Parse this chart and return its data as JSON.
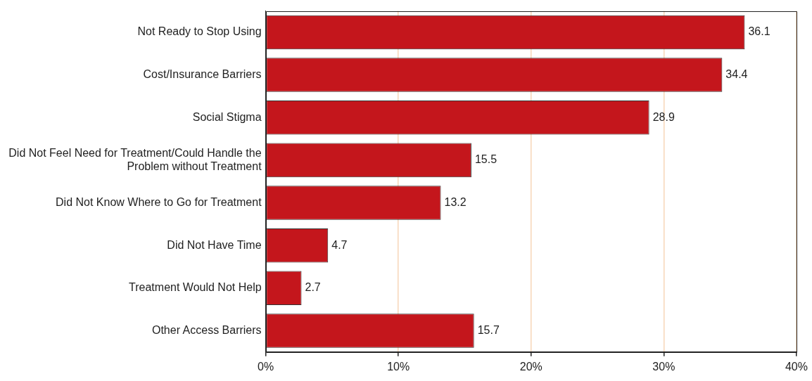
{
  "chart_data": {
    "type": "bar",
    "orientation": "horizontal",
    "categories": [
      "Not Ready to Stop Using",
      "Cost/Insurance Barriers",
      "Social Stigma",
      "Did Not Feel Need for Treatment/Could Handle the Problem without Treatment",
      "Did Not Know Where to Go for Treatment",
      "Did Not Have Time",
      "Treatment Would Not Help",
      "Other Access Barriers"
    ],
    "values": [
      36.1,
      34.4,
      28.9,
      15.5,
      13.2,
      4.7,
      2.7,
      15.7
    ],
    "color": "#c4161c",
    "xlim": [
      0,
      40
    ],
    "xticks": [
      {
        "value": 0,
        "label": "0%"
      },
      {
        "value": 10,
        "label": "10%"
      },
      {
        "value": 20,
        "label": "20%"
      },
      {
        "value": 30,
        "label": "30%"
      },
      {
        "value": 40,
        "label": "40%"
      }
    ],
    "grid": "x",
    "data_labels": true
  }
}
